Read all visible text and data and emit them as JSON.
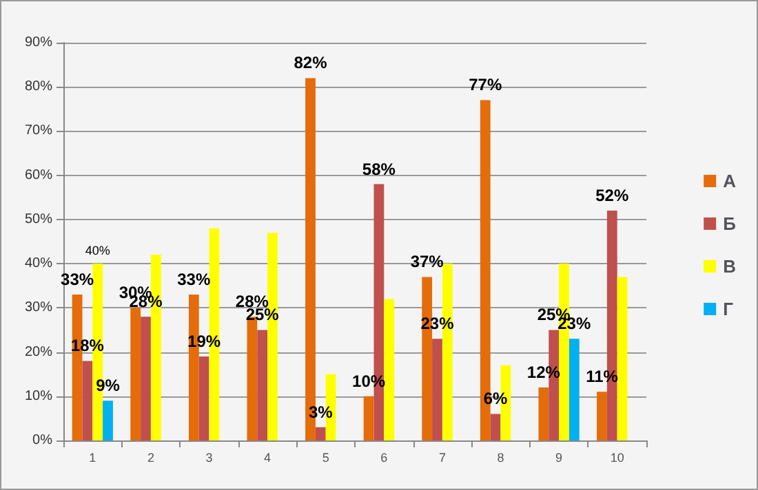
{
  "chart_data": {
    "type": "bar",
    "categories": [
      "1",
      "2",
      "3",
      "4",
      "5",
      "6",
      "7",
      "8",
      "9",
      "10"
    ],
    "series": [
      {
        "name": "А",
        "color": "#e46c0a",
        "values": [
          33,
          30,
          33,
          28,
          82,
          10,
          37,
          77,
          12,
          11
        ],
        "value_labels": [
          "33%",
          "30%",
          "33%",
          "28%",
          "82%",
          "10%",
          "37%",
          "77%",
          "12%",
          "11%"
        ]
      },
      {
        "name": "Б",
        "color": "#c0504d",
        "values": [
          18,
          28,
          19,
          25,
          3,
          58,
          23,
          6,
          25,
          52
        ],
        "value_labels": [
          "18%",
          "28%",
          "19%",
          "25%",
          "3%",
          "58%",
          "23%",
          "6%",
          "25%",
          "52%"
        ]
      },
      {
        "name": "В",
        "color": "#ffff00",
        "values": [
          40,
          42,
          48,
          47,
          15,
          32,
          40,
          17,
          40,
          37
        ],
        "value_labels": [
          "40%",
          null,
          null,
          null,
          null,
          null,
          null,
          null,
          null,
          null
        ]
      },
      {
        "name": "Г",
        "color": "#00b0f0",
        "values": [
          9,
          null,
          null,
          null,
          null,
          null,
          null,
          null,
          23,
          null
        ],
        "value_labels": [
          "9%",
          null,
          null,
          null,
          null,
          null,
          null,
          null,
          "23%",
          null
        ]
      }
    ],
    "ylim": [
      0,
      90
    ],
    "yticks": [
      {
        "value": 0,
        "label": "0%"
      },
      {
        "value": 10,
        "label": "10%"
      },
      {
        "value": 20,
        "label": "20%"
      },
      {
        "value": 30,
        "label": "30%"
      },
      {
        "value": 40,
        "label": "40%"
      },
      {
        "value": 50,
        "label": "50%"
      },
      {
        "value": 60,
        "label": "60%"
      },
      {
        "value": 70,
        "label": "70%"
      },
      {
        "value": 80,
        "label": "80%"
      },
      {
        "value": 90,
        "label": "90%"
      }
    ],
    "grid": "y",
    "legend": "right"
  }
}
